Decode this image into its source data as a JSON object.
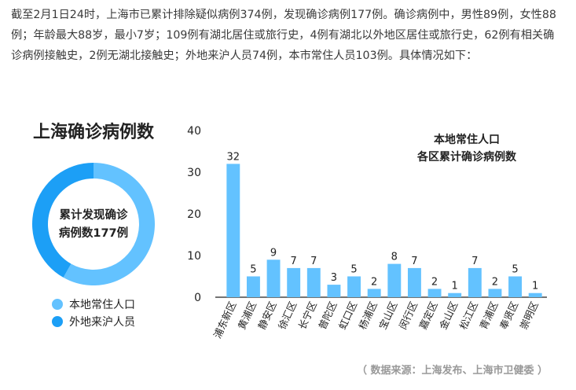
{
  "intro_text": "截至2月1日24时，上海市已累计排除疑似病例374例，发现确诊病例177例。确诊病例中，男性89例，女性88例；年龄最大88岁，最小7岁；109例有湖北居住或旅行史，4例有湖北以外地区居住或旅行史，62例有相关确诊病例接触史，2例无湖北接触史；外地来沪人员74例，本市常住人员103例。具体情况如下：",
  "source_text": "（ 数据来源：上海发布、上海市卫健委 ）",
  "colors": {
    "local": "#63c2ff",
    "visitor": "#1c9ff6",
    "text": "#222222"
  },
  "chart_data": [
    {
      "type": "pie",
      "title": "上海确诊病例数",
      "center_label": [
        "累计发现确诊",
        "病例数177例"
      ],
      "categories": [
        "本地常住人口",
        "外地来沪人员"
      ],
      "values": [
        103,
        74
      ],
      "style": "donut"
    },
    {
      "type": "bar",
      "title": [
        "本地常住人口",
        "各区累计确诊病例数"
      ],
      "categories": [
        "浦东新区",
        "黄浦区",
        "静安区",
        "徐汇区",
        "长宁区",
        "普陀区",
        "虹口区",
        "杨浦区",
        "宝山区",
        "闵行区",
        "嘉定区",
        "金山区",
        "松江区",
        "青浦区",
        "奉贤区",
        "崇明区"
      ],
      "values": [
        32,
        5,
        9,
        7,
        7,
        3,
        5,
        2,
        8,
        7,
        2,
        1,
        7,
        2,
        5,
        1
      ],
      "ylim": [
        0,
        40
      ],
      "yticks": [
        0,
        10,
        20,
        30,
        40
      ],
      "grid": false,
      "data_labels": true
    }
  ]
}
